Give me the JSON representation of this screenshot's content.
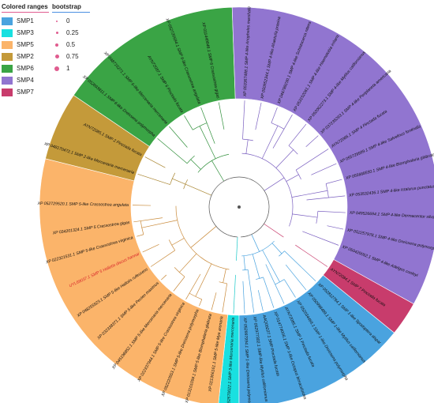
{
  "legend": {
    "colored_title": "Colored ranges",
    "bootstrap_title": "bootstrap",
    "ranges": [
      {
        "label": "SMP1",
        "color": "#4aa3df"
      },
      {
        "label": "SMP3",
        "color": "#19e0e0"
      },
      {
        "label": "SMP5",
        "color": "#fbb46a"
      },
      {
        "label": "SMP2",
        "color": "#c49a3a"
      },
      {
        "label": "SMP6",
        "color": "#3aa445"
      },
      {
        "label": "SMP4",
        "color": "#9175d0"
      },
      {
        "label": "SMP7",
        "color": "#c83c6c"
      }
    ],
    "bootstrap": [
      {
        "label": "0",
        "size": 1
      },
      {
        "label": "0.25",
        "size": 2
      },
      {
        "label": "0.5",
        "size": 3
      },
      {
        "label": "0.75",
        "size": 4
      },
      {
        "label": "1",
        "size": 5
      }
    ]
  },
  "groups": [
    {
      "name": "SMP3",
      "color": "#19e0e0",
      "start": 90,
      "end": 96
    },
    {
      "name": "SMP5",
      "color": "#fbb46a",
      "start": 96,
      "end": 194
    },
    {
      "name": "SMP2",
      "color": "#c49a3a",
      "start": 194,
      "end": 214
    },
    {
      "name": "SMP6",
      "color": "#3aa445",
      "start": 214,
      "end": 268
    },
    {
      "name": "SMP4",
      "color": "#9175d0",
      "start": 268,
      "end": 389
    },
    {
      "name": "SMP7",
      "color": "#c83c6c",
      "start": 389,
      "end": 399
    },
    {
      "name": "SMP1",
      "color": "#4aa3df",
      "start": 399,
      "end": 450
    }
  ],
  "leaves": [
    {
      "label": "XP 052670022.1 SMP 3-like Mercenaria mercenaria",
      "angle": 93
    },
    {
      "label": "XP 021366161.1 SMP 5-like Mya arenaria",
      "angle": 99
    },
    {
      "label": "XP 013101094.1 SMP 5-like Biomphalaria glabrata",
      "angle": 105
    },
    {
      "label": "XP 052220553.1 SMP 5-like Dreissena polymorpha",
      "angle": 112
    },
    {
      "label": "XP 022337944.1 SMP 5-like Crassostrea virginica",
      "angle": 120
    },
    {
      "label": "XP 045198852.1 SMP 5-like Mercenaria mercenaria",
      "angle": 128
    },
    {
      "label": "XP 032338371.1 SMP 5-like Pecten maximus",
      "angle": 137
    },
    {
      "label": "XP 048255923.1 SMP 5-like Haliotis rufescens",
      "angle": 146
    },
    {
      "label": "UYL69037.1 SMP 5 Haliotis discus hannai",
      "angle": 155,
      "highlight": true
    },
    {
      "label": "XP 022321531.1 SMP 5-like Crassostrea virginica",
      "angle": 164
    },
    {
      "label": "XP 034201324.1 SMP 5 Crassostrea gigas",
      "angle": 172
    },
    {
      "label": "XP 052729520.1 SMP 5-like Crassostrea angulata",
      "angle": 181
    },
    {
      "label": "XP 048170472.1 SMP 2-like Mercenaria mercenaria",
      "angle": 198
    },
    {
      "label": "AYN72085.1 SMP 2 Pinctada fucata",
      "angle": 208
    },
    {
      "label": "XP 052693811.1 SMP 6-like Dreissena polymorpha",
      "angle": 220
    },
    {
      "label": "XP 048716271.1 SMP 6-like Mercenaria mercenaria",
      "angle": 229
    },
    {
      "label": "AYN72087.1 SMP 6 Pinctada fucata",
      "angle": 239
    },
    {
      "label": "XP 052720694.1 SMP 6-like Crassostrea angulata",
      "angle": 249
    },
    {
      "label": "XP 011449846.1 SMP 6 Crassostrea gigas",
      "angle": 259
    },
    {
      "label": "XP 053367488.1 SMP 4-like Anopheles marshallii",
      "angle": 273
    },
    {
      "label": "XP 050952344.1 SMP 4-like Ahaetulla prasina",
      "angle": 282
    },
    {
      "label": "XP 046789230.1 SMP 4-like Schistocerca nitens",
      "angle": 291
    },
    {
      "label": "XP 053152061.1 SMP 4-like Haematobia irritans",
      "angle": 300
    },
    {
      "label": "XP 052062273.1 SMP 4-like Mytilus californianus",
      "angle": 309
    },
    {
      "label": "XP 037235293.1 SMP 4-like Periplaneta americana",
      "angle": 318
    },
    {
      "label": "AYN72086.1 SMP 4 Pinctada fucata",
      "angle": 327
    },
    {
      "label": "XP 055729999.1 SMP 4-like Salvelinus fontinalis",
      "angle": 336
    },
    {
      "label": "XP 055668550.1 SMP 4-like Biomphalaria glabrata",
      "angle": 345
    },
    {
      "label": "XP 053532436.1 SMP 4-like Ictalurus punctatus",
      "angle": 354
    },
    {
      "label": "XP 049526694.1 SMP 4-like Dermacentor silvarum",
      "angle": 363
    },
    {
      "label": "XP 052257978.1 SMP 4-like Dreissena polymorpha",
      "angle": 372
    },
    {
      "label": "XP 050420052.1 SMP 4-like Adelges cooleyi",
      "angle": 381
    },
    {
      "label": "AYN72084.1 SMP 7 Pinctada fucata",
      "angle": 394
    },
    {
      "label": "XP 052812784.1 SMP 1-like Spodoptera dispar",
      "angle": 404
    },
    {
      "label": "XP 050998489.1 SMP 1-like Mytilus californianus",
      "angle": 411
    },
    {
      "label": "XP 052034466.1 SMP 1-like Dreissena polymorpha",
      "angle": 418
    },
    {
      "label": "AYN72085.1 SMP 1 Pinctada fucata",
      "angle": 425
    },
    {
      "label": "XP 014774006.1 SMP 1-like Octopus bimaculoides",
      "angle": 431
    },
    {
      "label": "AAQ09227.1 SMP Pinctada fucata",
      "angle": 437
    },
    {
      "label": "XP 052977302.1 SMP-like Mytilus californianus",
      "angle": 442
    },
    {
      "label": "XP 052997994.1 SMP 1-like Dreissena polymorpha",
      "angle": 447
    }
  ]
}
